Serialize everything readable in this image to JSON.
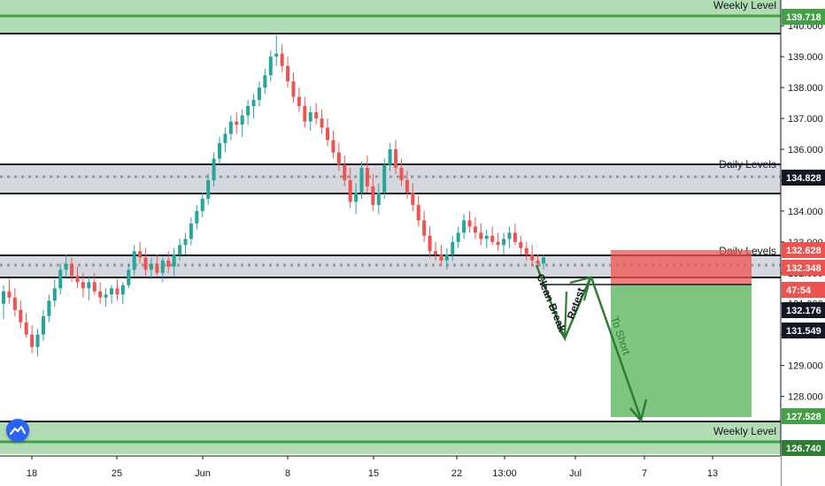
{
  "chart_data": {
    "type": "candlestick",
    "instrument_hint": "",
    "price_range": [
      126.3,
      140.2
    ],
    "x_ticks": [
      "18",
      "25",
      "Jun",
      "8",
      "15",
      "22",
      "13:00",
      "Jul",
      "7",
      "13"
    ],
    "y_ticks": [
      "128.000",
      "129.000",
      "130.000",
      "131.000",
      "132.000",
      "133.000",
      "134.000",
      "135.000",
      "136.000",
      "137.000",
      "138.000",
      "139.000",
      "140.000"
    ],
    "price_tags": [
      {
        "value": "139.718",
        "color": "#43a047",
        "text_color": "#ffffff"
      },
      {
        "value": "134.828",
        "color": "#131722",
        "text_color": "#ffffff"
      },
      {
        "value": "132.628",
        "color": "#ef5350",
        "text_color": "#ffffff"
      },
      {
        "value": "132.348",
        "color": "#ef5350",
        "text_color": "#ffffff"
      },
      {
        "value": "47:54",
        "color": "#ef5350",
        "text_color": "#ffffff"
      },
      {
        "value": "132.176",
        "color": "#131722",
        "text_color": "#ffffff"
      },
      {
        "value": "131.549",
        "color": "#131722",
        "text_color": "#ffffff"
      },
      {
        "value": "127.528",
        "color": "#43a047",
        "text_color": "#ffffff"
      },
      {
        "value": "126.740",
        "color": "#2e7d32",
        "text_color": "#ffffff"
      }
    ],
    "zones": [
      {
        "label": "Weekly Level",
        "from": 139.4,
        "to": 140.2,
        "fill": "#a5d6a7"
      },
      {
        "label": "Daily Levels",
        "from": 134.4,
        "to": 135.3,
        "fill": "#d1d4dc"
      },
      {
        "label": "Daily Levels",
        "from": 132.2,
        "to": 132.6,
        "fill": "#d1d4dc"
      },
      {
        "label": "Weekly Level",
        "from": 126.4,
        "to": 127.5,
        "fill": "#a5d6a7"
      }
    ],
    "position": {
      "type": "short",
      "entry": 132.176,
      "stop": 132.628,
      "target": 127.528,
      "risk_color": "#ef5350",
      "reward_color": "#66bb6a"
    },
    "annotations": [
      "Clean Break",
      "Retest",
      "To Short"
    ],
    "up_color": "#26a69a",
    "down_color": "#ef5350",
    "candles": [
      [
        131.0,
        131.6,
        130.5,
        131.4
      ],
      [
        131.4,
        131.8,
        131.0,
        131.2
      ],
      [
        131.2,
        131.5,
        130.6,
        130.8
      ],
      [
        130.8,
        131.1,
        130.2,
        130.4
      ],
      [
        130.4,
        130.7,
        129.9,
        130.0
      ],
      [
        130.0,
        130.3,
        129.4,
        129.6
      ],
      [
        129.6,
        130.2,
        129.3,
        130.0
      ],
      [
        130.0,
        130.8,
        129.8,
        130.6
      ],
      [
        130.6,
        131.3,
        130.4,
        131.1
      ],
      [
        131.1,
        131.8,
        130.9,
        131.5
      ],
      [
        131.5,
        132.3,
        131.3,
        132.1
      ],
      [
        132.1,
        132.6,
        131.8,
        132.3
      ],
      [
        132.3,
        132.5,
        131.7,
        131.9
      ],
      [
        131.9,
        132.2,
        131.5,
        131.7
      ],
      [
        131.7,
        132.0,
        131.2,
        131.5
      ],
      [
        131.5,
        131.9,
        131.1,
        131.7
      ],
      [
        131.7,
        132.0,
        131.3,
        131.4
      ],
      [
        131.4,
        131.7,
        131.0,
        131.2
      ],
      [
        131.2,
        131.5,
        130.9,
        131.3
      ],
      [
        131.3,
        131.6,
        131.0,
        131.5
      ],
      [
        131.5,
        131.8,
        131.1,
        131.3
      ],
      [
        131.3,
        131.7,
        131.0,
        131.6
      ],
      [
        131.6,
        132.3,
        131.5,
        132.1
      ],
      [
        132.1,
        132.9,
        131.9,
        132.7
      ],
      [
        132.7,
        133.0,
        132.3,
        132.5
      ],
      [
        132.5,
        132.8,
        131.9,
        132.1
      ],
      [
        132.1,
        132.5,
        131.8,
        132.3
      ],
      [
        132.3,
        132.6,
        131.9,
        132.0
      ],
      [
        132.0,
        132.5,
        131.7,
        132.4
      ],
      [
        132.4,
        132.7,
        132.0,
        132.2
      ],
      [
        132.2,
        132.8,
        131.9,
        132.6
      ],
      [
        132.6,
        133.1,
        132.4,
        132.9
      ],
      [
        132.9,
        133.3,
        132.6,
        133.1
      ],
      [
        133.1,
        133.8,
        132.9,
        133.6
      ],
      [
        133.6,
        134.2,
        133.4,
        134.0
      ],
      [
        134.0,
        134.6,
        133.8,
        134.4
      ],
      [
        134.4,
        135.2,
        134.2,
        135.0
      ],
      [
        135.0,
        135.9,
        134.8,
        135.7
      ],
      [
        135.7,
        136.4,
        135.5,
        136.2
      ],
      [
        136.2,
        136.7,
        135.9,
        136.5
      ],
      [
        136.5,
        137.1,
        136.3,
        136.9
      ],
      [
        136.9,
        137.2,
        136.5,
        136.8
      ],
      [
        136.8,
        137.3,
        136.4,
        137.1
      ],
      [
        137.1,
        137.6,
        136.8,
        137.4
      ],
      [
        137.4,
        137.8,
        137.0,
        137.6
      ],
      [
        137.6,
        138.2,
        137.4,
        138.0
      ],
      [
        138.0,
        138.6,
        137.8,
        138.4
      ],
      [
        138.4,
        139.2,
        138.2,
        139.0
      ],
      [
        139.0,
        139.7,
        138.7,
        139.1
      ],
      [
        139.1,
        139.4,
        138.5,
        138.7
      ],
      [
        138.7,
        139.0,
        138.0,
        138.2
      ],
      [
        138.2,
        138.5,
        137.5,
        137.7
      ],
      [
        137.7,
        138.0,
        137.2,
        137.4
      ],
      [
        137.4,
        137.7,
        136.7,
        136.9
      ],
      [
        136.9,
        137.4,
        136.6,
        137.2
      ],
      [
        137.2,
        137.5,
        136.8,
        137.0
      ],
      [
        137.0,
        137.3,
        136.5,
        136.7
      ],
      [
        136.7,
        137.0,
        136.1,
        136.3
      ],
      [
        136.3,
        136.6,
        135.7,
        135.9
      ],
      [
        135.9,
        136.2,
        135.3,
        135.5
      ],
      [
        135.5,
        135.8,
        134.8,
        135.0
      ],
      [
        135.0,
        135.4,
        134.1,
        134.3
      ],
      [
        134.3,
        134.9,
        133.9,
        134.6
      ],
      [
        134.6,
        135.6,
        134.4,
        135.4
      ],
      [
        135.4,
        135.8,
        134.6,
        134.8
      ],
      [
        134.8,
        135.2,
        134.0,
        134.2
      ],
      [
        134.2,
        134.9,
        133.9,
        134.6
      ],
      [
        134.6,
        135.7,
        134.4,
        135.5
      ],
      [
        135.5,
        136.2,
        135.3,
        136.0
      ],
      [
        136.0,
        136.3,
        135.2,
        135.4
      ],
      [
        135.4,
        135.7,
        134.8,
        135.0
      ],
      [
        135.0,
        135.3,
        134.4,
        134.6
      ],
      [
        134.6,
        134.9,
        134.0,
        134.2
      ],
      [
        134.2,
        134.5,
        133.5,
        133.7
      ],
      [
        133.7,
        134.0,
        133.0,
        133.2
      ],
      [
        133.2,
        133.5,
        132.5,
        132.7
      ],
      [
        132.7,
        133.0,
        132.4,
        132.6
      ],
      [
        132.6,
        132.9,
        132.2,
        132.4
      ],
      [
        132.4,
        132.8,
        132.1,
        132.6
      ],
      [
        132.6,
        133.2,
        132.4,
        133.0
      ],
      [
        133.0,
        133.5,
        132.8,
        133.3
      ],
      [
        133.3,
        133.9,
        133.1,
        133.7
      ],
      [
        133.7,
        134.0,
        133.3,
        133.5
      ],
      [
        133.5,
        133.8,
        133.1,
        133.3
      ],
      [
        133.3,
        133.6,
        132.9,
        133.1
      ],
      [
        133.1,
        133.4,
        132.8,
        133.2
      ],
      [
        133.2,
        133.5,
        132.9,
        133.0
      ],
      [
        133.0,
        133.3,
        132.7,
        132.9
      ],
      [
        132.9,
        133.3,
        132.6,
        133.1
      ],
      [
        133.1,
        133.5,
        132.8,
        133.3
      ],
      [
        133.3,
        133.6,
        132.9,
        133.0
      ],
      [
        133.0,
        133.2,
        132.6,
        132.8
      ],
      [
        132.8,
        133.0,
        132.4,
        132.6
      ],
      [
        132.6,
        132.9,
        132.2,
        132.4
      ],
      [
        132.4,
        132.6,
        132.1,
        132.3
      ],
      [
        132.3,
        132.6,
        132.1,
        132.5
      ]
    ]
  }
}
